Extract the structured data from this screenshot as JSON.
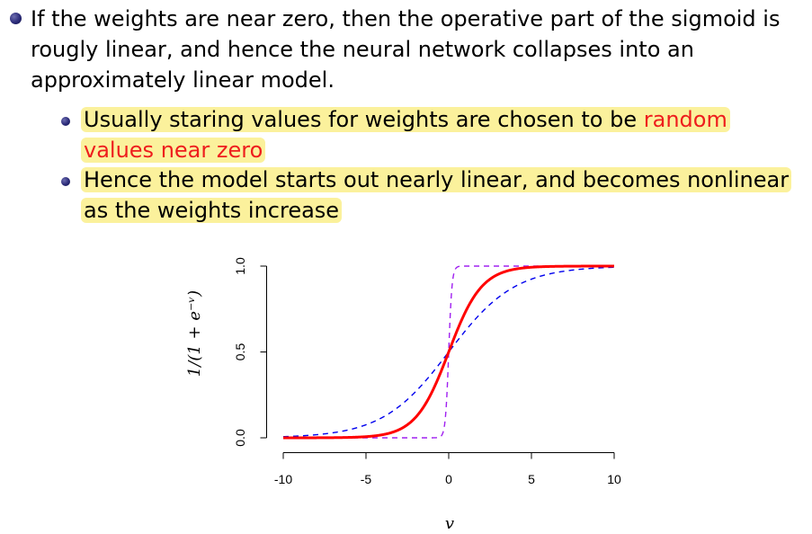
{
  "bullets": [
    {
      "text": "If the weights are near zero, then the operative part of the sigmoid is rougly linear, and hence the neural network collapses into an approximately linear model.",
      "sub": [
        {
          "text_pre": "Usually staring values for weights are chosen to be ",
          "text_red": "random values near zero"
        },
        {
          "text": "Hence the model starts out nearly linear, and becomes nonlinear as the weights increase"
        }
      ]
    }
  ],
  "colors": {
    "highlight": "#fbf19c",
    "emphasis": "#ee1d1d",
    "bullet": "#2a2a78"
  },
  "chart_data": {
    "type": "line",
    "xlabel": "v",
    "ylabel": "1/(1+e^{-v})",
    "xlim": [
      -10,
      10
    ],
    "ylim": [
      0,
      1
    ],
    "x_ticks": [
      "-10",
      "-5",
      "0",
      "5",
      "10"
    ],
    "y_ticks": [
      "0.0",
      "0.5",
      "1.0"
    ],
    "series": [
      {
        "color": "#ff0000",
        "style": "solid",
        "scale": 1
      },
      {
        "color": "#0000ee",
        "style": "dashed",
        "scale": 0.5
      },
      {
        "color": "#a020f0",
        "style": "dashed",
        "scale": 10
      }
    ]
  }
}
